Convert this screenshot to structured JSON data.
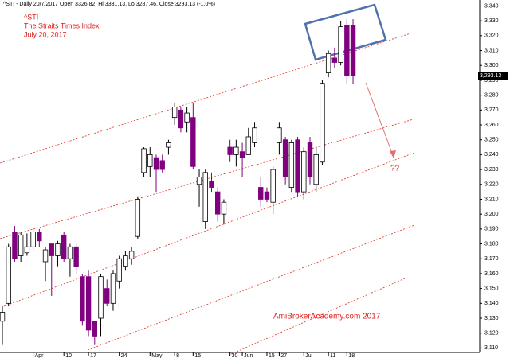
{
  "chart_data": {
    "type": "candlestick",
    "header": "^STI - Daily 20/7/2017 Open 3326.82, Hi 3331.13, Lo 3287.46, Close 3293.13 (-1.0%)",
    "title_lines": [
      "^STI",
      "The Straits Times Index",
      "July 20, 2017"
    ],
    "watermark": "AmiBrokerAcademy.com  2017",
    "question": "??",
    "last_price_label": "3,293.13",
    "up_color": "#ffffff",
    "down_color": "#800080",
    "categories": [
      null,
      null,
      null,
      null,
      null,
      "Apr",
      null,
      null,
      null,
      null,
      "10",
      null,
      null,
      null,
      "17",
      null,
      null,
      null,
      null,
      "24",
      null,
      null,
      null,
      null,
      "May",
      null,
      null,
      null,
      "8",
      null,
      null,
      "15",
      null,
      null,
      null,
      null,
      null,
      "30",
      null,
      "Jun",
      null,
      null,
      null,
      "15",
      null,
      "27",
      null,
      null,
      null,
      "Jul",
      null,
      null,
      null,
      "11",
      null,
      null,
      "18",
      null
    ],
    "open": [
      3128,
      3140,
      3188,
      3172,
      3174,
      3178,
      3188,
      3168,
      3180,
      3172,
      3186,
      3170,
      3178,
      3158,
      3158,
      3128,
      3130,
      3150,
      3140,
      3155,
      3165,
      3170,
      3185,
      3228,
      3232,
      3238,
      3236,
      3245,
      3265,
      3270,
      3262,
      3265,
      3220,
      3195,
      3222,
      3215,
      3200,
      3245,
      3240,
      3242,
      3240,
      3248,
      3218,
      3215,
      3208,
      3248,
      3250,
      3218,
      3250,
      3215,
      3248,
      3220,
      3235,
      3295,
      3305,
      3302,
      3326.82,
      3326.82
    ],
    "high": [
      3138,
      3180,
      3192,
      3188,
      3187,
      3190,
      3190,
      3178,
      3180,
      3182,
      3188,
      3180,
      3180,
      3160,
      3162,
      3128,
      3160,
      3156,
      3162,
      3172,
      3175,
      3178,
      3212,
      3245,
      3245,
      3240,
      3240,
      3250,
      3275,
      3272,
      3272,
      3275,
      3230,
      3230,
      3228,
      3218,
      3210,
      3250,
      3250,
      3248,
      3258,
      3262,
      3225,
      3218,
      3232,
      3262,
      3252,
      3250,
      3252,
      3245,
      3252,
      3245,
      3290,
      3310,
      3312,
      3330,
      3331.13,
      3331.13
    ],
    "low": [
      3112,
      3138,
      3168,
      3168,
      3172,
      3176,
      3178,
      3155,
      3145,
      3165,
      3168,
      3158,
      3160,
      3125,
      3118,
      3112,
      3118,
      3138,
      3135,
      3150,
      3162,
      3166,
      3183,
      3225,
      3225,
      3215,
      3228,
      3240,
      3260,
      3255,
      3255,
      3230,
      3205,
      3190,
      3215,
      3195,
      3193,
      3235,
      3232,
      3225,
      3240,
      3245,
      3205,
      3208,
      3200,
      3240,
      3220,
      3215,
      3212,
      3210,
      3220,
      3215,
      3233,
      3292,
      3298,
      3300,
      3287.46,
      3287.46
    ],
    "close": [
      3134,
      3178,
      3170,
      3186,
      3178,
      3188,
      3182,
      3176,
      3172,
      3180,
      3170,
      3178,
      3165,
      3128,
      3122,
      3118,
      3158,
      3140,
      3160,
      3170,
      3172,
      3175,
      3210,
      3244,
      3240,
      3230,
      3230,
      3248,
      3272,
      3258,
      3268,
      3232,
      3225,
      3228,
      3218,
      3200,
      3208,
      3240,
      3245,
      3238,
      3252,
      3258,
      3210,
      3210,
      3230,
      3258,
      3225,
      3248,
      3215,
      3242,
      3225,
      3240,
      3288,
      3308,
      3302,
      3326,
      3293.13,
      3293.13
    ],
    "ylim": [
      3107,
      3344
    ],
    "yticks": [
      {
        "value": 3110,
        "label": "3,110"
      },
      {
        "value": 3120,
        "label": "3,120"
      },
      {
        "value": 3130,
        "label": "3,130"
      },
      {
        "value": 3140,
        "label": "3,140"
      },
      {
        "value": 3150,
        "label": "3,150"
      },
      {
        "value": 3160,
        "label": "3,160"
      },
      {
        "value": 3170,
        "label": "3,170"
      },
      {
        "value": 3180,
        "label": "3,180"
      },
      {
        "value": 3190,
        "label": "3,190"
      },
      {
        "value": 3200,
        "label": "3,200"
      },
      {
        "value": 3210,
        "label": "3,210"
      },
      {
        "value": 3220,
        "label": "3,220"
      },
      {
        "value": 3230,
        "label": "3,230"
      },
      {
        "value": 3240,
        "label": "3,240"
      },
      {
        "value": 3250,
        "label": "3,250"
      },
      {
        "value": 3260,
        "label": "3,260"
      },
      {
        "value": 3270,
        "label": "3,270"
      },
      {
        "value": 3280,
        "label": "3,280"
      },
      {
        "value": 3290,
        "label": "3,290"
      },
      {
        "value": 3300,
        "label": "3,300"
      },
      {
        "value": 3310,
        "label": "3,310"
      },
      {
        "value": 3320,
        "label": "3,320"
      },
      {
        "value": 3330,
        "label": "3,330"
      },
      {
        "value": 3340,
        "label": "3,340"
      }
    ]
  }
}
